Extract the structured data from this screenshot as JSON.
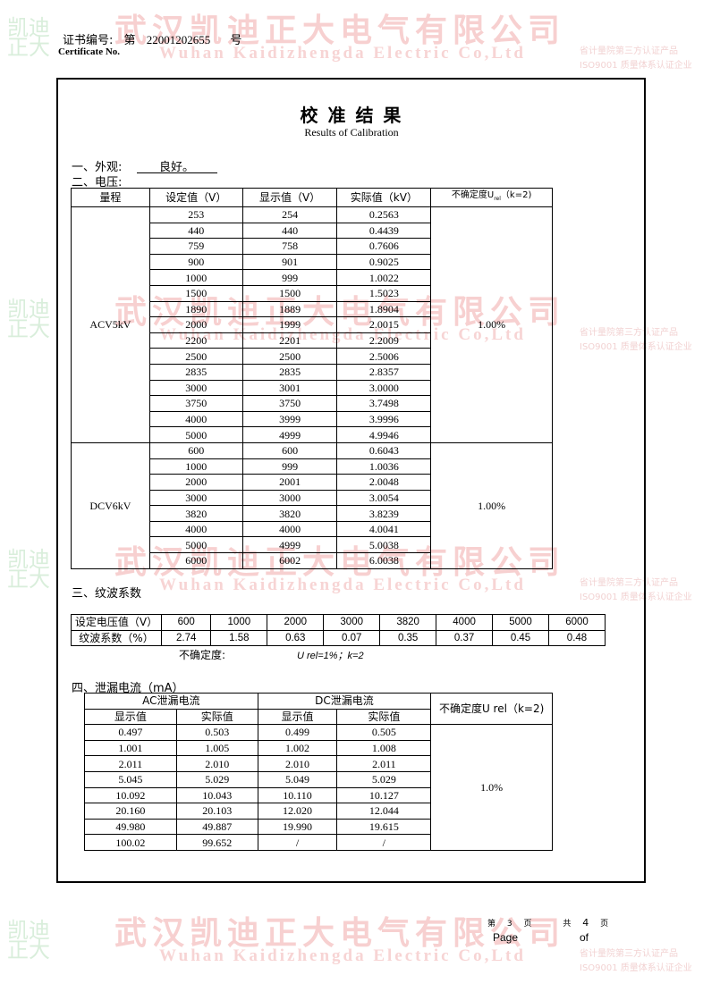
{
  "watermark": {
    "company_cn": "武汉凯迪正大电气有限公司",
    "company_en": "Wuhan Kaidizhengda Electric Co,Ltd",
    "logo_text": "凯迪正大",
    "side_line1": "省计量院第三方认证产品",
    "side_line2": "ISO9001 质量体系认证企业"
  },
  "header": {
    "cert_label": "证书编号:",
    "cert_prefix": "第",
    "cert_number": "22001202655",
    "cert_suffix": "号",
    "cert_label_en": "Certificate No."
  },
  "title": {
    "cn": "校 准 结 果",
    "en": "Results of Calibration"
  },
  "appearance": {
    "label": "一、外观:",
    "value": "良好。"
  },
  "voltage": {
    "label": "二、电压:",
    "headers": [
      "量程",
      "设定值（V）",
      "显示值（V）",
      "实际值（kV）",
      "不确定度U",
      "rel",
      "（k=2)"
    ],
    "groups": [
      {
        "range": "ACV5kV",
        "uncertainty": "1.00%",
        "rows": [
          [
            "253",
            "254",
            "0.2563"
          ],
          [
            "440",
            "440",
            "0.4439"
          ],
          [
            "759",
            "758",
            "0.7606"
          ],
          [
            "900",
            "901",
            "0.9025"
          ],
          [
            "1000",
            "999",
            "1.0022"
          ],
          [
            "1500",
            "1500",
            "1.5023"
          ],
          [
            "1890",
            "1889",
            "1.8904"
          ],
          [
            "2000",
            "1999",
            "2.0015"
          ],
          [
            "2200",
            "2201",
            "2.2009"
          ],
          [
            "2500",
            "2500",
            "2.5006"
          ],
          [
            "2835",
            "2835",
            "2.8357"
          ],
          [
            "3000",
            "3001",
            "3.0000"
          ],
          [
            "3750",
            "3750",
            "3.7498"
          ],
          [
            "4000",
            "3999",
            "3.9996"
          ],
          [
            "5000",
            "4999",
            "4.9946"
          ]
        ]
      },
      {
        "range": "DCV6kV",
        "uncertainty": "1.00%",
        "rows": [
          [
            "600",
            "600",
            "0.6043"
          ],
          [
            "1000",
            "999",
            "1.0036"
          ],
          [
            "2000",
            "2001",
            "2.0048"
          ],
          [
            "3000",
            "3000",
            "3.0054"
          ],
          [
            "3820",
            "3820",
            "3.8239"
          ],
          [
            "4000",
            "4000",
            "4.0041"
          ],
          [
            "5000",
            "4999",
            "5.0038"
          ],
          [
            "6000",
            "6002",
            "6.0038"
          ]
        ]
      }
    ]
  },
  "ripple": {
    "label": "三、纹波系数",
    "row1_label": "设定电压值（V）",
    "row1": [
      "600",
      "1000",
      "2000",
      "3000",
      "3820",
      "4000",
      "5000",
      "6000"
    ],
    "row2_label": "纹波系数（%）",
    "row2": [
      "2.74",
      "1.58",
      "0.63",
      "0.07",
      "0.35",
      "0.37",
      "0.45",
      "0.48"
    ],
    "uncertainty_label": "不确定度:",
    "uncertainty_value": "U rel=1%；k=2"
  },
  "leakage": {
    "label": "四、泄漏电流（mA）",
    "ac_header": "AC泄漏电流",
    "dc_header": "DC泄漏电流",
    "sub_headers": [
      "显示值",
      "实际值",
      "显示值",
      "实际值"
    ],
    "uncertainty_header": "不确定度U rel（k=2)",
    "uncertainty": "1.0%",
    "rows": [
      [
        "0.497",
        "0.503",
        "0.499",
        "0.505"
      ],
      [
        "1.001",
        "1.005",
        "1.002",
        "1.008"
      ],
      [
        "2.011",
        "2.010",
        "2.010",
        "2.011"
      ],
      [
        "5.045",
        "5.029",
        "5.049",
        "5.029"
      ],
      [
        "10.092",
        "10.043",
        "10.110",
        "10.127"
      ],
      [
        "20.160",
        "20.103",
        "12.020",
        "12.044"
      ],
      [
        "49.980",
        "49.887",
        "19.990",
        "19.615"
      ],
      [
        "100.02",
        "99.652",
        "/",
        "/"
      ]
    ]
  },
  "footer": {
    "page_prefix": "第",
    "page": "3",
    "page_suffix": "页",
    "total_prefix": "共",
    "total": "4",
    "total_suffix": "页",
    "page_en": "Page",
    "of_en": "of"
  }
}
